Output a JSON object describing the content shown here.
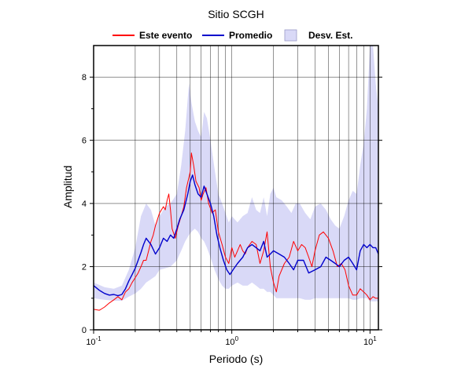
{
  "chart_data": {
    "type": "line",
    "title": "Sitio SCGH",
    "xlabel": "Periodo (s)",
    "ylabel": "Amplitud",
    "x_scale": "log",
    "xlim": [
      0.1,
      11.5
    ],
    "ylim": [
      0,
      9
    ],
    "grid": true,
    "legend_position": "top",
    "x_ticks": [
      {
        "value": 0.1,
        "base": "10",
        "exp": "-1"
      },
      {
        "value": 1,
        "base": "10",
        "exp": "0"
      },
      {
        "value": 10,
        "base": "10",
        "exp": "1"
      }
    ],
    "y_ticks": [
      0,
      2,
      4,
      6,
      8
    ],
    "legend": [
      {
        "label": "Este evento",
        "kind": "line",
        "color": "#ff0000"
      },
      {
        "label": "Promedio",
        "kind": "line",
        "color": "#0000cc"
      },
      {
        "label": "Desv. Est.",
        "kind": "band",
        "color": "#d9d9f7"
      }
    ],
    "series": [
      {
        "name": "Este evento",
        "color": "#ff0000",
        "points": [
          [
            0.1,
            0.65
          ],
          [
            0.11,
            0.62
          ],
          [
            0.12,
            0.72
          ],
          [
            0.13,
            0.85
          ],
          [
            0.14,
            0.95
          ],
          [
            0.15,
            1.05
          ],
          [
            0.16,
            0.95
          ],
          [
            0.17,
            1.2
          ],
          [
            0.18,
            1.3
          ],
          [
            0.19,
            1.5
          ],
          [
            0.2,
            1.65
          ],
          [
            0.21,
            1.8
          ],
          [
            0.22,
            2.0
          ],
          [
            0.23,
            2.2
          ],
          [
            0.24,
            2.2
          ],
          [
            0.25,
            2.5
          ],
          [
            0.26,
            2.8
          ],
          [
            0.27,
            3.0
          ],
          [
            0.28,
            3.3
          ],
          [
            0.3,
            3.7
          ],
          [
            0.32,
            3.9
          ],
          [
            0.33,
            3.8
          ],
          [
            0.34,
            4.1
          ],
          [
            0.35,
            4.3
          ],
          [
            0.36,
            3.8
          ],
          [
            0.37,
            3.2
          ],
          [
            0.39,
            2.9
          ],
          [
            0.41,
            3.3
          ],
          [
            0.43,
            3.6
          ],
          [
            0.45,
            3.9
          ],
          [
            0.47,
            4.5
          ],
          [
            0.5,
            5.0
          ],
          [
            0.51,
            5.6
          ],
          [
            0.53,
            5.2
          ],
          [
            0.55,
            4.7
          ],
          [
            0.58,
            4.5
          ],
          [
            0.6,
            4.1
          ],
          [
            0.62,
            4.3
          ],
          [
            0.65,
            4.5
          ],
          [
            0.68,
            4.0
          ],
          [
            0.72,
            3.7
          ],
          [
            0.76,
            3.8
          ],
          [
            0.8,
            3.1
          ],
          [
            0.85,
            2.7
          ],
          [
            0.9,
            2.3
          ],
          [
            0.95,
            2.1
          ],
          [
            1.0,
            2.6
          ],
          [
            1.05,
            2.3
          ],
          [
            1.1,
            2.5
          ],
          [
            1.15,
            2.7
          ],
          [
            1.2,
            2.5
          ],
          [
            1.25,
            2.4
          ],
          [
            1.3,
            2.6
          ],
          [
            1.4,
            2.8
          ],
          [
            1.5,
            2.7
          ],
          [
            1.6,
            2.1
          ],
          [
            1.7,
            2.5
          ],
          [
            1.8,
            3.1
          ],
          [
            1.9,
            2.0
          ],
          [
            2.0,
            1.5
          ],
          [
            2.1,
            1.2
          ],
          [
            2.2,
            1.7
          ],
          [
            2.4,
            2.1
          ],
          [
            2.6,
            2.3
          ],
          [
            2.8,
            2.8
          ],
          [
            3.0,
            2.5
          ],
          [
            3.2,
            2.7
          ],
          [
            3.4,
            2.6
          ],
          [
            3.6,
            2.3
          ],
          [
            3.8,
            2.0
          ],
          [
            4.0,
            2.5
          ],
          [
            4.3,
            3.0
          ],
          [
            4.6,
            3.1
          ],
          [
            5.0,
            2.9
          ],
          [
            5.4,
            2.5
          ],
          [
            5.8,
            2.0
          ],
          [
            6.2,
            2.1
          ],
          [
            6.6,
            1.9
          ],
          [
            7.0,
            1.4
          ],
          [
            7.5,
            1.1
          ],
          [
            8.0,
            1.1
          ],
          [
            8.5,
            1.3
          ],
          [
            9.0,
            1.2
          ],
          [
            9.5,
            1.1
          ],
          [
            10.0,
            0.95
          ],
          [
            10.5,
            1.05
          ],
          [
            11.0,
            1.0
          ],
          [
            11.5,
            1.0
          ]
        ]
      },
      {
        "name": "Promedio",
        "color": "#0000cc",
        "points": [
          [
            0.1,
            1.4
          ],
          [
            0.11,
            1.25
          ],
          [
            0.12,
            1.15
          ],
          [
            0.13,
            1.1
          ],
          [
            0.14,
            1.12
          ],
          [
            0.15,
            1.08
          ],
          [
            0.16,
            1.12
          ],
          [
            0.17,
            1.3
          ],
          [
            0.18,
            1.55
          ],
          [
            0.19,
            1.75
          ],
          [
            0.2,
            1.95
          ],
          [
            0.21,
            2.2
          ],
          [
            0.22,
            2.45
          ],
          [
            0.23,
            2.7
          ],
          [
            0.24,
            2.9
          ],
          [
            0.26,
            2.7
          ],
          [
            0.28,
            2.4
          ],
          [
            0.3,
            2.6
          ],
          [
            0.32,
            2.9
          ],
          [
            0.34,
            2.8
          ],
          [
            0.36,
            3.0
          ],
          [
            0.38,
            2.9
          ],
          [
            0.4,
            3.2
          ],
          [
            0.42,
            3.5
          ],
          [
            0.45,
            3.8
          ],
          [
            0.48,
            4.3
          ],
          [
            0.5,
            4.7
          ],
          [
            0.52,
            4.9
          ],
          [
            0.54,
            4.6
          ],
          [
            0.57,
            4.3
          ],
          [
            0.6,
            4.2
          ],
          [
            0.63,
            4.55
          ],
          [
            0.66,
            4.3
          ],
          [
            0.7,
            4.0
          ],
          [
            0.74,
            3.6
          ],
          [
            0.78,
            3.0
          ],
          [
            0.82,
            2.6
          ],
          [
            0.87,
            2.2
          ],
          [
            0.92,
            1.9
          ],
          [
            0.97,
            1.75
          ],
          [
            1.02,
            1.9
          ],
          [
            1.1,
            2.1
          ],
          [
            1.2,
            2.3
          ],
          [
            1.3,
            2.6
          ],
          [
            1.4,
            2.7
          ],
          [
            1.5,
            2.6
          ],
          [
            1.6,
            2.5
          ],
          [
            1.7,
            2.8
          ],
          [
            1.8,
            2.3
          ],
          [
            1.9,
            2.4
          ],
          [
            2.0,
            2.5
          ],
          [
            2.2,
            2.4
          ],
          [
            2.4,
            2.3
          ],
          [
            2.6,
            2.1
          ],
          [
            2.8,
            1.9
          ],
          [
            3.0,
            2.2
          ],
          [
            3.3,
            2.2
          ],
          [
            3.6,
            1.8
          ],
          [
            4.0,
            1.9
          ],
          [
            4.4,
            2.0
          ],
          [
            4.8,
            2.3
          ],
          [
            5.2,
            2.2
          ],
          [
            5.6,
            2.1
          ],
          [
            6.0,
            2.0
          ],
          [
            6.5,
            2.2
          ],
          [
            7.0,
            2.3
          ],
          [
            7.5,
            2.1
          ],
          [
            8.0,
            1.9
          ],
          [
            8.5,
            2.5
          ],
          [
            9.0,
            2.7
          ],
          [
            9.5,
            2.6
          ],
          [
            10.0,
            2.7
          ],
          [
            10.5,
            2.6
          ],
          [
            11.0,
            2.6
          ],
          [
            11.5,
            2.4
          ]
        ]
      }
    ],
    "band": {
      "name": "Desv. Est.",
      "color": "#d9d9f7",
      "upper": [
        [
          0.1,
          1.5
        ],
        [
          0.12,
          1.35
        ],
        [
          0.14,
          1.3
        ],
        [
          0.16,
          1.4
        ],
        [
          0.18,
          1.9
        ],
        [
          0.2,
          2.6
        ],
        [
          0.22,
          3.6
        ],
        [
          0.24,
          4.0
        ],
        [
          0.26,
          3.8
        ],
        [
          0.28,
          3.3
        ],
        [
          0.3,
          3.6
        ],
        [
          0.33,
          3.9
        ],
        [
          0.36,
          4.0
        ],
        [
          0.4,
          4.3
        ],
        [
          0.43,
          5.2
        ],
        [
          0.46,
          6.3
        ],
        [
          0.49,
          7.8
        ],
        [
          0.51,
          7.2
        ],
        [
          0.54,
          6.6
        ],
        [
          0.57,
          6.3
        ],
        [
          0.6,
          6.1
        ],
        [
          0.63,
          6.9
        ],
        [
          0.66,
          6.7
        ],
        [
          0.7,
          6.0
        ],
        [
          0.75,
          5.1
        ],
        [
          0.8,
          4.3
        ],
        [
          0.85,
          4.0
        ],
        [
          0.9,
          3.7
        ],
        [
          0.95,
          3.4
        ],
        [
          1.0,
          3.6
        ],
        [
          1.1,
          3.4
        ],
        [
          1.2,
          3.6
        ],
        [
          1.3,
          3.7
        ],
        [
          1.4,
          4.2
        ],
        [
          1.5,
          3.8
        ],
        [
          1.6,
          3.7
        ],
        [
          1.7,
          4.2
        ],
        [
          1.8,
          3.6
        ],
        [
          1.9,
          4.3
        ],
        [
          2.0,
          4.5
        ],
        [
          2.1,
          4.2
        ],
        [
          2.3,
          4.1
        ],
        [
          2.5,
          3.9
        ],
        [
          2.7,
          3.7
        ],
        [
          2.9,
          4.0
        ],
        [
          3.1,
          4.0
        ],
        [
          3.4,
          3.7
        ],
        [
          3.7,
          3.5
        ],
        [
          4.0,
          3.9
        ],
        [
          4.4,
          4.0
        ],
        [
          4.8,
          3.8
        ],
        [
          5.2,
          3.5
        ],
        [
          5.6,
          3.3
        ],
        [
          6.0,
          3.2
        ],
        [
          6.5,
          3.6
        ],
        [
          7.0,
          4.1
        ],
        [
          7.5,
          4.4
        ],
        [
          8.0,
          4.3
        ],
        [
          8.5,
          5.2
        ],
        [
          9.0,
          5.9
        ],
        [
          9.5,
          7.0
        ],
        [
          10.0,
          9.0
        ],
        [
          10.5,
          9.0
        ],
        [
          11.0,
          7.8
        ],
        [
          11.5,
          7.0
        ]
      ],
      "lower": [
        [
          0.1,
          1.0
        ],
        [
          0.12,
          0.95
        ],
        [
          0.14,
          0.92
        ],
        [
          0.16,
          0.92
        ],
        [
          0.18,
          1.05
        ],
        [
          0.2,
          1.15
        ],
        [
          0.22,
          1.3
        ],
        [
          0.24,
          1.5
        ],
        [
          0.26,
          1.6
        ],
        [
          0.28,
          1.7
        ],
        [
          0.3,
          1.9
        ],
        [
          0.33,
          1.95
        ],
        [
          0.36,
          2.0
        ],
        [
          0.4,
          2.2
        ],
        [
          0.43,
          2.5
        ],
        [
          0.46,
          2.8
        ],
        [
          0.49,
          3.0
        ],
        [
          0.51,
          3.1
        ],
        [
          0.54,
          3.2
        ],
        [
          0.57,
          3.1
        ],
        [
          0.6,
          2.9
        ],
        [
          0.63,
          2.8
        ],
        [
          0.66,
          2.6
        ],
        [
          0.7,
          2.3
        ],
        [
          0.75,
          1.9
        ],
        [
          0.8,
          1.6
        ],
        [
          0.85,
          1.4
        ],
        [
          0.9,
          1.3
        ],
        [
          0.95,
          1.3
        ],
        [
          1.0,
          1.4
        ],
        [
          1.1,
          1.5
        ],
        [
          1.2,
          1.4
        ],
        [
          1.3,
          1.4
        ],
        [
          1.4,
          1.5
        ],
        [
          1.5,
          1.4
        ],
        [
          1.6,
          1.3
        ],
        [
          1.7,
          1.3
        ],
        [
          1.8,
          1.2
        ],
        [
          1.9,
          1.2
        ],
        [
          2.0,
          1.1
        ],
        [
          2.1,
          1.0
        ],
        [
          2.3,
          1.0
        ],
        [
          2.5,
          1.0
        ],
        [
          2.7,
          1.0
        ],
        [
          2.9,
          1.0
        ],
        [
          3.1,
          1.0
        ],
        [
          3.4,
          0.95
        ],
        [
          3.7,
          0.95
        ],
        [
          4.0,
          1.0
        ],
        [
          4.4,
          1.0
        ],
        [
          4.8,
          1.0
        ],
        [
          5.2,
          1.0
        ],
        [
          5.6,
          1.0
        ],
        [
          6.0,
          1.0
        ],
        [
          6.5,
          1.0
        ],
        [
          7.0,
          1.0
        ],
        [
          7.5,
          0.95
        ],
        [
          8.0,
          0.95
        ],
        [
          8.5,
          1.0
        ],
        [
          9.0,
          1.0
        ],
        [
          9.5,
          1.0
        ],
        [
          10.0,
          0.9
        ],
        [
          10.5,
          0.9
        ],
        [
          11.0,
          0.9
        ],
        [
          11.5,
          0.9
        ]
      ]
    }
  }
}
